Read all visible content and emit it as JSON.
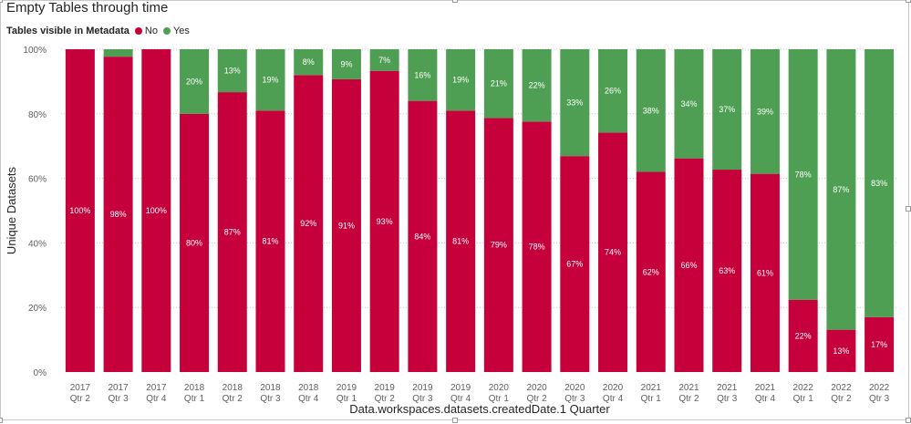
{
  "title": "Empty Tables through time",
  "legend": {
    "title": "Tables visible in Metadata",
    "items": [
      {
        "label": "No",
        "color": "#C5003B"
      },
      {
        "label": "Yes",
        "color": "#4E9E53"
      }
    ]
  },
  "chart_data": {
    "type": "bar",
    "stacked": "100%",
    "title": "Empty Tables through time",
    "xlabel": "Data.workspaces.datasets.createdDate.1 Quarter",
    "ylabel": "Unique Datasets",
    "ylim": [
      0,
      100
    ],
    "yticks": [
      "0%",
      "20%",
      "40%",
      "60%",
      "80%",
      "100%"
    ],
    "grid": true,
    "legend_position": "top-left",
    "categories": [
      [
        "2017",
        "Qtr 2"
      ],
      [
        "2017",
        "Qtr 3"
      ],
      [
        "2017",
        "Qtr 4"
      ],
      [
        "2018",
        "Qtr 1"
      ],
      [
        "2018",
        "Qtr 2"
      ],
      [
        "2018",
        "Qtr 3"
      ],
      [
        "2018",
        "Qtr 4"
      ],
      [
        "2019",
        "Qtr 1"
      ],
      [
        "2019",
        "Qtr 2"
      ],
      [
        "2019",
        "Qtr 3"
      ],
      [
        "2019",
        "Qtr 4"
      ],
      [
        "2020",
        "Qtr 1"
      ],
      [
        "2020",
        "Qtr 2"
      ],
      [
        "2020",
        "Qtr 3"
      ],
      [
        "2020",
        "Qtr 4"
      ],
      [
        "2021",
        "Qtr 1"
      ],
      [
        "2021",
        "Qtr 2"
      ],
      [
        "2021",
        "Qtr 3"
      ],
      [
        "2021",
        "Qtr 4"
      ],
      [
        "2022",
        "Qtr 1"
      ],
      [
        "2022",
        "Qtr 2"
      ],
      [
        "2022",
        "Qtr 3"
      ]
    ],
    "series": [
      {
        "name": "No",
        "color": "#C5003B",
        "values": [
          100,
          97.7,
          100,
          80,
          86.7,
          81,
          92,
          90.7,
          93.3,
          84,
          81,
          78.7,
          77.6,
          66.9,
          74.2,
          62,
          66.2,
          62.7,
          61.4,
          22.4,
          13.1,
          17
        ],
        "labels": [
          "100%",
          "98%",
          "100%",
          "80%",
          "87%",
          "81%",
          "92%",
          "91%",
          "93%",
          "84%",
          "81%",
          "79%",
          "78%",
          "67%",
          "74%",
          "62%",
          "66%",
          "63%",
          "61%",
          "22%",
          "13%",
          "17%"
        ]
      },
      {
        "name": "Yes",
        "color": "#4E9E53",
        "values": [
          0,
          2.3,
          0,
          20,
          13.3,
          19,
          8,
          9.3,
          6.7,
          16,
          19,
          21.3,
          22.4,
          33.1,
          25.8,
          38,
          33.8,
          37.3,
          38.6,
          77.6,
          86.9,
          83
        ],
        "labels": [
          "",
          "",
          "",
          "20%",
          "13%",
          "19%",
          "8%",
          "9%",
          "7%",
          "16%",
          "19%",
          "21%",
          "22%",
          "33%",
          "26%",
          "38%",
          "34%",
          "37%",
          "39%",
          "78%",
          "87%",
          "83%"
        ]
      }
    ]
  }
}
